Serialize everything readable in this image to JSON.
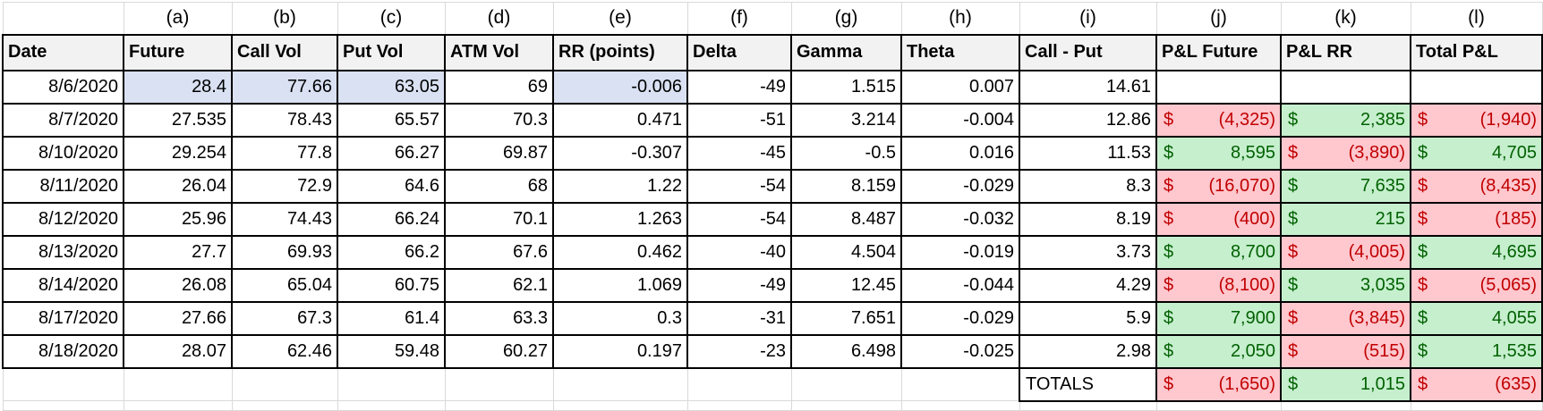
{
  "colors": {
    "header_bg": "#f2f2f2",
    "highlight_blue": "#d9e1f2",
    "positive_bg": "#c6efce",
    "positive_text": "#006100",
    "negative_bg": "#ffc7ce",
    "negative_text": "#c00000",
    "gridline": "#d9d9d9",
    "border": "#000000"
  },
  "table": {
    "currency": "$",
    "keys": [
      "date",
      "future",
      "call-vol",
      "put-vol",
      "atm-vol",
      "rr-points",
      "delta",
      "gamma",
      "theta",
      "call-put",
      "pnl-future",
      "pnl-rr",
      "total-pnl"
    ],
    "widths": [
      135,
      121,
      118,
      120,
      121,
      150,
      116,
      123,
      132,
      153,
      139,
      145,
      147
    ],
    "columns": [
      {
        "letter": "",
        "label": "Date"
      },
      {
        "letter": "(a)",
        "label": "Future"
      },
      {
        "letter": "(b)",
        "label": "Call Vol"
      },
      {
        "letter": "(c)",
        "label": "Put Vol"
      },
      {
        "letter": "(d)",
        "label": "ATM Vol"
      },
      {
        "letter": "(e)",
        "label": "RR (points)"
      },
      {
        "letter": "(f)",
        "label": "Delta"
      },
      {
        "letter": "(g)",
        "label": "Gamma"
      },
      {
        "letter": "(h)",
        "label": "Theta"
      },
      {
        "letter": "(i)",
        "label": "Call - Put"
      },
      {
        "letter": "(j)",
        "label": "P&L Future"
      },
      {
        "letter": "(k)",
        "label": "P&L RR"
      },
      {
        "letter": "(l)",
        "label": "Total P&L"
      }
    ],
    "rows": [
      {
        "values": [
          "8/6/2020",
          "28.4",
          "77.66",
          "63.05",
          "69",
          "-0.006",
          "-49",
          "1.515",
          "0.007",
          "14.61"
        ],
        "highlight": [
          1,
          2,
          3,
          5
        ],
        "pnl": [
          null,
          null,
          null
        ]
      },
      {
        "values": [
          "8/7/2020",
          "27.535",
          "78.43",
          "65.57",
          "70.3",
          "0.471",
          "-51",
          "3.214",
          "-0.004",
          "12.86"
        ],
        "highlight": [],
        "pnl": [
          {
            "amount": "(4,325)",
            "state": "neg"
          },
          {
            "amount": "2,385",
            "state": "pos"
          },
          {
            "amount": "(1,940)",
            "state": "neg"
          }
        ]
      },
      {
        "values": [
          "8/10/2020",
          "29.254",
          "77.8",
          "66.27",
          "69.87",
          "-0.307",
          "-45",
          "-0.5",
          "0.016",
          "11.53"
        ],
        "highlight": [],
        "pnl": [
          {
            "amount": "8,595",
            "state": "pos"
          },
          {
            "amount": "(3,890)",
            "state": "neg"
          },
          {
            "amount": "4,705",
            "state": "pos"
          }
        ]
      },
      {
        "values": [
          "8/11/2020",
          "26.04",
          "72.9",
          "64.6",
          "68",
          "1.22",
          "-54",
          "8.159",
          "-0.029",
          "8.3"
        ],
        "highlight": [],
        "pnl": [
          {
            "amount": "(16,070)",
            "state": "neg"
          },
          {
            "amount": "7,635",
            "state": "pos"
          },
          {
            "amount": "(8,435)",
            "state": "neg"
          }
        ]
      },
      {
        "values": [
          "8/12/2020",
          "25.96",
          "74.43",
          "66.24",
          "70.1",
          "1.263",
          "-54",
          "8.487",
          "-0.032",
          "8.19"
        ],
        "highlight": [],
        "pnl": [
          {
            "amount": "(400)",
            "state": "neg"
          },
          {
            "amount": "215",
            "state": "pos"
          },
          {
            "amount": "(185)",
            "state": "neg"
          }
        ]
      },
      {
        "values": [
          "8/13/2020",
          "27.7",
          "69.93",
          "66.2",
          "67.6",
          "0.462",
          "-40",
          "4.504",
          "-0.019",
          "3.73"
        ],
        "highlight": [],
        "pnl": [
          {
            "amount": "8,700",
            "state": "pos"
          },
          {
            "amount": "(4,005)",
            "state": "neg"
          },
          {
            "amount": "4,695",
            "state": "pos"
          }
        ]
      },
      {
        "values": [
          "8/14/2020",
          "26.08",
          "65.04",
          "60.75",
          "62.1",
          "1.069",
          "-49",
          "12.45",
          "-0.044",
          "4.29"
        ],
        "highlight": [],
        "pnl": [
          {
            "amount": "(8,100)",
            "state": "neg"
          },
          {
            "amount": "3,035",
            "state": "pos"
          },
          {
            "amount": "(5,065)",
            "state": "neg"
          }
        ]
      },
      {
        "values": [
          "8/17/2020",
          "27.66",
          "67.3",
          "61.4",
          "63.3",
          "0.3",
          "-31",
          "7.651",
          "-0.029",
          "5.9"
        ],
        "highlight": [],
        "pnl": [
          {
            "amount": "7,900",
            "state": "pos"
          },
          {
            "amount": "(3,845)",
            "state": "neg"
          },
          {
            "amount": "4,055",
            "state": "pos"
          }
        ]
      },
      {
        "values": [
          "8/18/2020",
          "28.07",
          "62.46",
          "59.48",
          "60.27",
          "0.197",
          "-23",
          "6.498",
          "-0.025",
          "2.98"
        ],
        "highlight": [],
        "pnl": [
          {
            "amount": "2,050",
            "state": "pos"
          },
          {
            "amount": "(515)",
            "state": "neg"
          },
          {
            "amount": "1,535",
            "state": "pos"
          }
        ]
      }
    ],
    "totals": {
      "label": "TOTALS",
      "pnl": [
        {
          "amount": "(1,650)",
          "state": "neg"
        },
        {
          "amount": "1,015",
          "state": "pos"
        },
        {
          "amount": "(635)",
          "state": "neg"
        }
      ]
    }
  }
}
